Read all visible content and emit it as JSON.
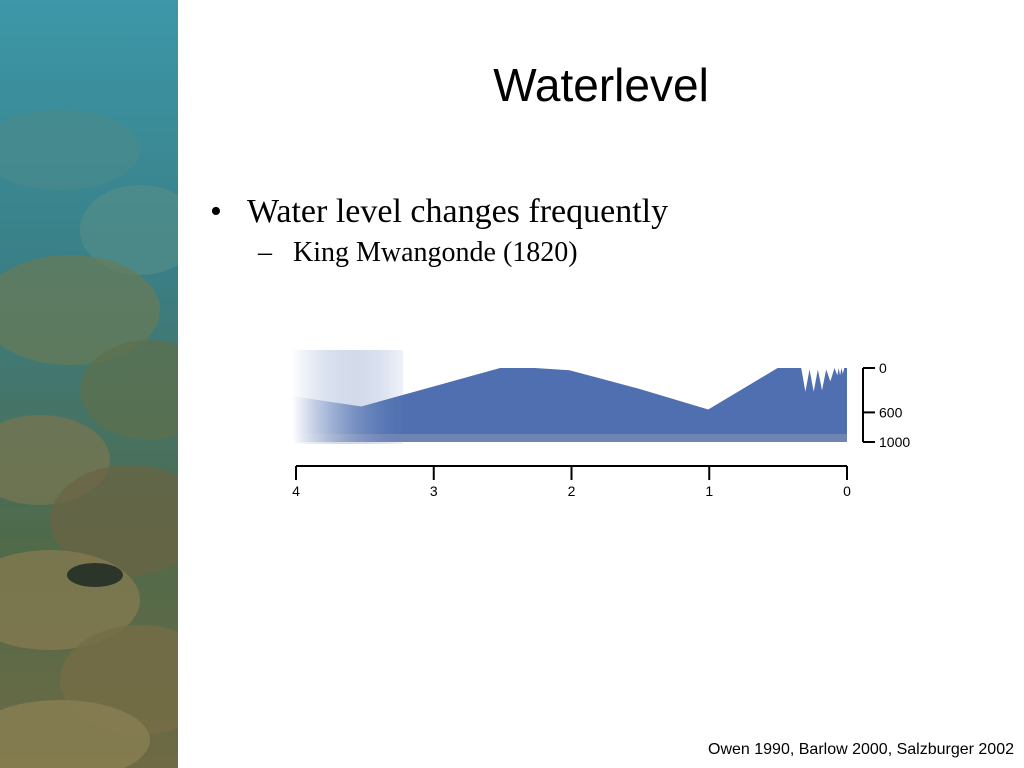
{
  "slide": {
    "title": "Waterlevel",
    "bullet": {
      "marker": "•",
      "text": "Water level changes frequently"
    },
    "sub_bullet": {
      "marker": "–",
      "text": "King Mwangonde (1820)"
    },
    "citation": "Owen 1990, Barlow 2000, Salzburger 2002"
  },
  "side_image": {
    "subject": "underwater-rocks",
    "colors": [
      "#4f9aa6",
      "#2d6f7c",
      "#6b6a3f",
      "#8a8150"
    ]
  },
  "chart_data": {
    "type": "area",
    "title": "",
    "xlabel": "",
    "ylabel": "",
    "series_color": "#4f6fb0",
    "x_ticks": [
      "4",
      "3",
      "2",
      "1",
      "0"
    ],
    "y_ticks": [
      "0",
      "600",
      "1000"
    ],
    "xlim": [
      4,
      0
    ],
    "ylim": [
      0,
      1000
    ],
    "y_inverted": true,
    "x": [
      4.0,
      3.5,
      3.0,
      2.5,
      2.25,
      2.0,
      1.5,
      1.0,
      0.5,
      0.33,
      0.3,
      0.27,
      0.24,
      0.21,
      0.18,
      0.15,
      0.12,
      0.09,
      0.07,
      0.06,
      0.05,
      0.04,
      0.03,
      0.02,
      0.0
    ],
    "y": [
      380,
      520,
      260,
      0,
      0,
      30,
      280,
      560,
      0,
      0,
      320,
      20,
      320,
      20,
      300,
      20,
      180,
      0,
      100,
      0,
      100,
      0,
      80,
      0,
      0
    ],
    "fade_region_x": [
      4.0,
      3.2
    ]
  }
}
